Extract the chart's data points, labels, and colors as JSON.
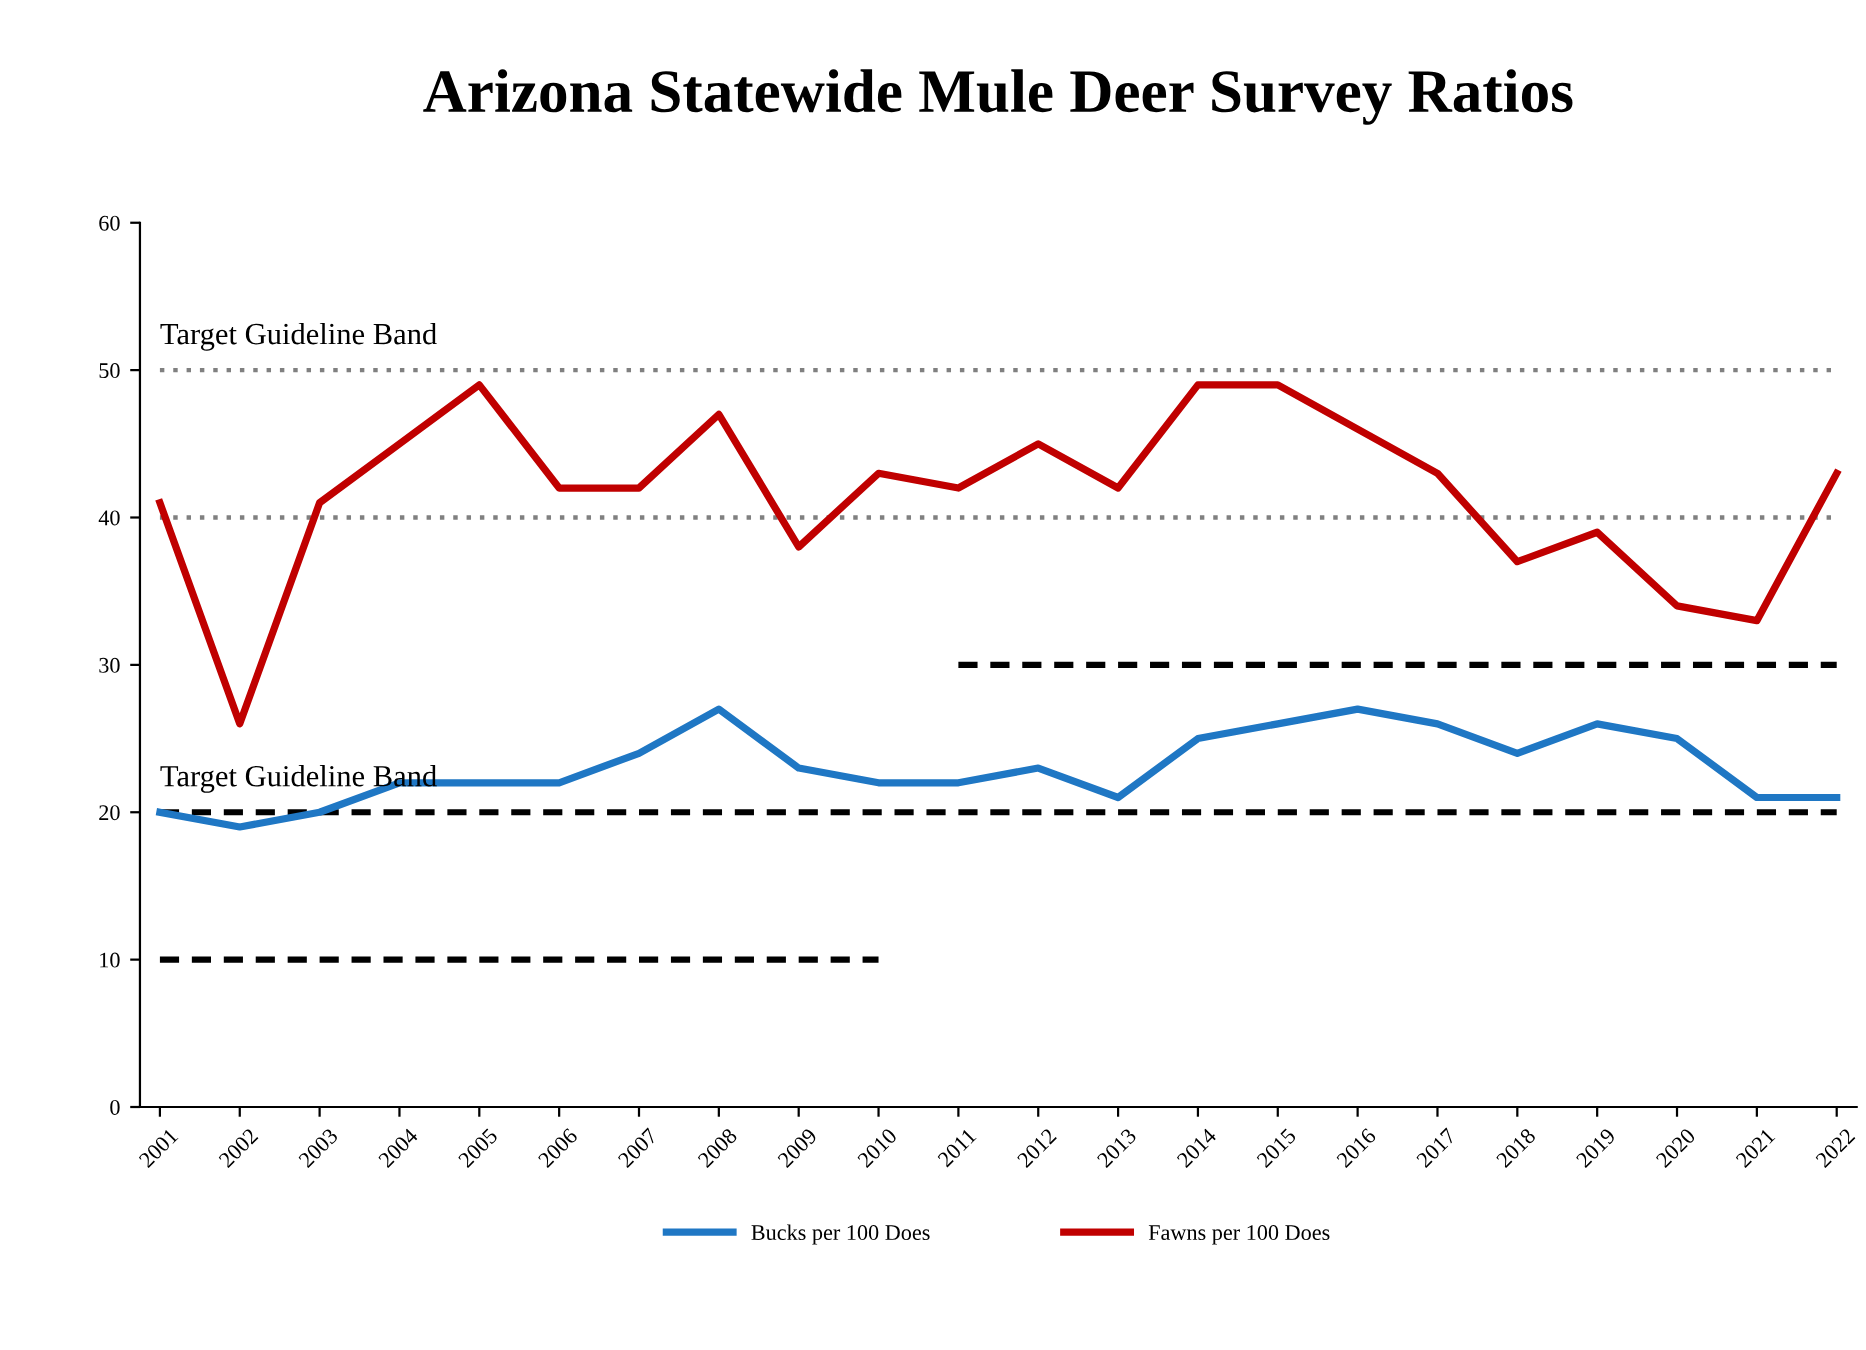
{
  "chart_data": {
    "type": "line",
    "title": "Arizona Statewide Mule Deer Survey Ratios",
    "categories": [
      "2001",
      "2002",
      "2003",
      "2004",
      "2005",
      "2006",
      "2007",
      "2008",
      "2009",
      "2010",
      "2011",
      "2012",
      "2013",
      "2014",
      "2015",
      "2016",
      "2017",
      "2018",
      "2019",
      "2020",
      "2021",
      "2022"
    ],
    "series": [
      {
        "name": "Bucks per 100 Does",
        "color": "#1f77c4",
        "values": [
          20,
          19,
          20,
          22,
          22,
          22,
          24,
          27,
          23,
          22,
          22,
          23,
          21,
          25,
          26,
          27,
          26,
          24,
          26,
          25,
          21,
          21
        ]
      },
      {
        "name": "Fawns per 100 Does",
        "color": "#c00000",
        "values": [
          41,
          26,
          41,
          45,
          49,
          42,
          42,
          47,
          38,
          43,
          42,
          45,
          42,
          49,
          49,
          46,
          43,
          37,
          39,
          34,
          33,
          43
        ]
      },
      {
        "color": "#000000",
        "line_style": "dashed",
        "values": [
          10,
          10,
          10,
          10,
          10,
          10,
          10,
          10,
          10,
          10,
          null,
          null,
          null,
          null,
          null,
          null,
          null,
          null,
          null,
          null,
          null,
          null
        ]
      },
      {
        "color": "#000000",
        "line_style": "dashed",
        "values": [
          20,
          20,
          20,
          20,
          20,
          20,
          20,
          20,
          20,
          20,
          20,
          20,
          20,
          20,
          20,
          20,
          20,
          20,
          20,
          20,
          20,
          20
        ]
      },
      {
        "color": "#000000",
        "line_style": "dashed",
        "values": [
          null,
          null,
          null,
          null,
          null,
          null,
          null,
          null,
          null,
          null,
          30,
          30,
          30,
          30,
          30,
          30,
          30,
          30,
          30,
          30,
          30,
          30
        ]
      },
      {
        "color": "#808080",
        "line_style": "dotted",
        "values": [
          40,
          40,
          40,
          40,
          40,
          40,
          40,
          40,
          40,
          40,
          40,
          40,
          40,
          40,
          40,
          40,
          40,
          40,
          40,
          40,
          40,
          40
        ]
      },
      {
        "color": "#808080",
        "line_style": "dotted",
        "values": [
          50,
          50,
          50,
          50,
          50,
          50,
          50,
          50,
          50,
          50,
          50,
          50,
          50,
          50,
          50,
          50,
          50,
          50,
          50,
          50,
          50,
          50
        ]
      }
    ],
    "annotations": [
      {
        "text": "Target Guideline Band",
        "x": "2001",
        "y": 50
      },
      {
        "text": "Target Guideline Band",
        "x": "2001",
        "y": 20
      }
    ],
    "ylim": [
      0,
      60
    ],
    "yticks": [
      0,
      10,
      20,
      30,
      40,
      50,
      60
    ],
    "grid": false,
    "legend": "bottom",
    "marker": "none"
  }
}
